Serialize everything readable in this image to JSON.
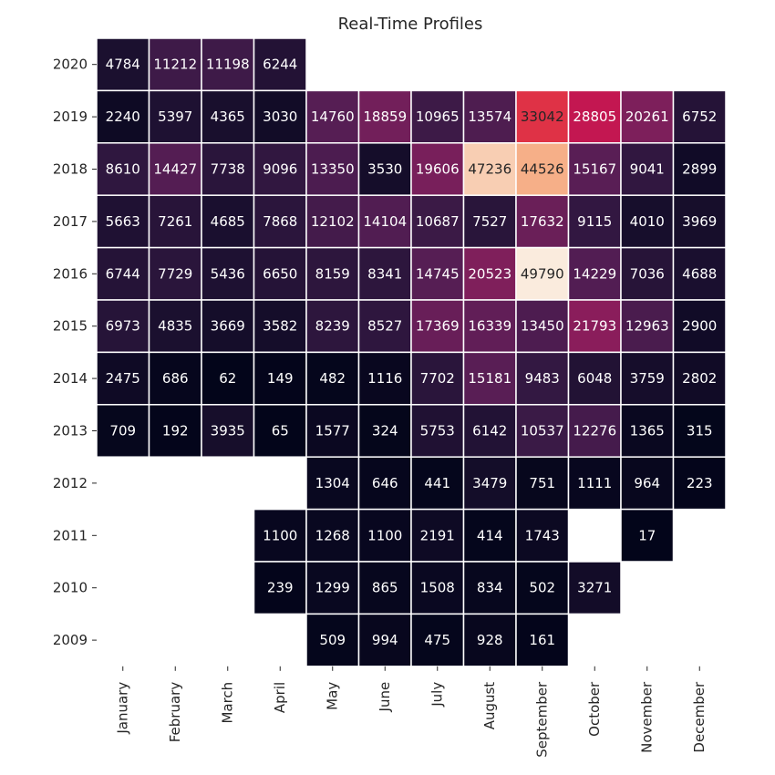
{
  "chart_data": {
    "type": "heatmap",
    "title": "Real-Time Profiles",
    "xlabel": "",
    "ylabel": "",
    "columns": [
      "January",
      "February",
      "March",
      "April",
      "May",
      "June",
      "July",
      "August",
      "September",
      "October",
      "November",
      "December"
    ],
    "rows": [
      "2020",
      "2019",
      "2018",
      "2017",
      "2016",
      "2015",
      "2014",
      "2013",
      "2012",
      "2011",
      "2010",
      "2009"
    ],
    "values": [
      [
        4784,
        11212,
        11198,
        6244,
        null,
        null,
        null,
        null,
        null,
        null,
        null,
        null
      ],
      [
        2240,
        5397,
        4365,
        3030,
        14760,
        18859,
        10965,
        13574,
        33042,
        28805,
        20261,
        6752
      ],
      [
        8610,
        14427,
        7738,
        9096,
        13350,
        3530,
        19606,
        47236,
        44526,
        15167,
        9041,
        2899
      ],
      [
        5663,
        7261,
        4685,
        7868,
        12102,
        14104,
        10687,
        7527,
        17632,
        9115,
        4010,
        3969
      ],
      [
        6744,
        7729,
        5436,
        6650,
        8159,
        8341,
        14745,
        20523,
        49790,
        14229,
        7036,
        4688
      ],
      [
        6973,
        4835,
        3669,
        3582,
        8239,
        8527,
        17369,
        16339,
        13450,
        21793,
        12963,
        2900
      ],
      [
        2475,
        686,
        62,
        149,
        482,
        1116,
        7702,
        15181,
        9483,
        6048,
        3759,
        2802
      ],
      [
        709,
        192,
        3935,
        65,
        1577,
        324,
        5753,
        6142,
        10537,
        12276,
        1365,
        315
      ],
      [
        null,
        null,
        null,
        null,
        1304,
        646,
        441,
        3479,
        751,
        1111,
        964,
        223
      ],
      [
        null,
        null,
        null,
        1100,
        1268,
        1100,
        2191,
        414,
        1743,
        null,
        17,
        null
      ],
      [
        null,
        null,
        null,
        239,
        1299,
        865,
        1508,
        834,
        502,
        3271,
        null,
        null
      ],
      [
        null,
        null,
        null,
        null,
        509,
        994,
        475,
        928,
        161,
        null,
        null,
        null
      ]
    ],
    "vmin": 17,
    "vmax": 49790,
    "colormap": "rocket",
    "grid": false,
    "legend": "none"
  }
}
